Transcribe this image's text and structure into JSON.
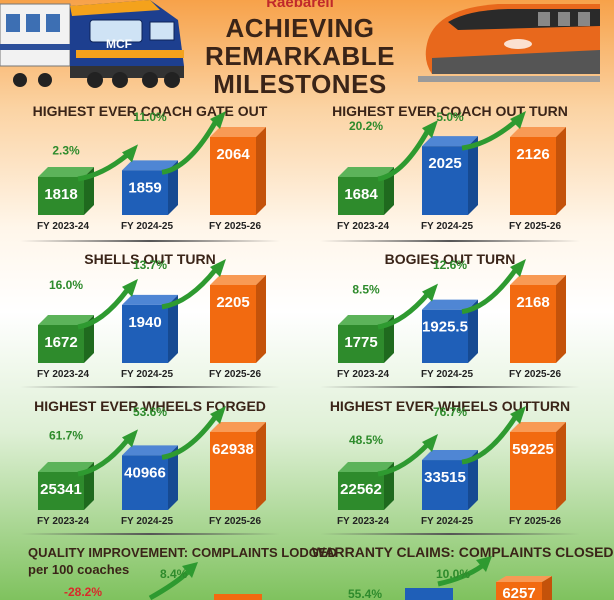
{
  "header": {
    "subtitle": "Raebareli",
    "title_lines": [
      "ACHIEVING",
      "REMARKABLE",
      "MILESTONES"
    ],
    "train_left_label": "MCF"
  },
  "colors": {
    "green": "#2e8b2c",
    "blue": "#1f5fb8",
    "orange": "#f26a10",
    "title": "#3a2418",
    "negative": "#d92a2a",
    "arrow": "#2e9a30"
  },
  "chart_data": [
    {
      "type": "bar",
      "title": "HIGHEST EVER COACH GATE OUT",
      "categories": [
        "FY 2023-24",
        "FY 2024-25",
        "FY 2025-26"
      ],
      "values": [
        1818,
        1859,
        2064
      ],
      "value_labels": [
        "1818",
        "1859",
        "2064"
      ],
      "growth_labels": [
        "2.3%",
        "11.0%"
      ]
    },
    {
      "type": "bar",
      "title": "HIGHEST EVER COACH OUT TURN",
      "categories": [
        "FY 2023-24",
        "FY 2024-25",
        "FY 2025-26"
      ],
      "values": [
        1684,
        2025,
        2126
      ],
      "value_labels": [
        "1684",
        "2025",
        "2126"
      ],
      "growth_labels": [
        "20.2%",
        "5.0%"
      ]
    },
    {
      "type": "bar",
      "title": "SHELLS OUT TURN",
      "categories": [
        "FY 2023-24",
        "FY 2024-25",
        "FY 2025-26"
      ],
      "values": [
        1672,
        1940,
        2205
      ],
      "value_labels": [
        "1672",
        "1940",
        "2205"
      ],
      "growth_labels": [
        "16.0%",
        "13.7%"
      ]
    },
    {
      "type": "bar",
      "title": "BOGIES OUT TURN",
      "categories": [
        "FY 2023-24",
        "FY 2024-25",
        "FY 2025-26"
      ],
      "values": [
        1775,
        1925.5,
        2168
      ],
      "value_labels": [
        "1775",
        "1925.5",
        "2168"
      ],
      "growth_labels": [
        "8.5%",
        "12.6%"
      ]
    },
    {
      "type": "bar",
      "title": "HIGHEST EVER WHEELS FORGED",
      "categories": [
        "FY 2023-24",
        "FY 2024-25",
        "FY 2025-26"
      ],
      "values": [
        25341,
        40966,
        62938
      ],
      "value_labels": [
        "25341",
        "40966",
        "62938"
      ],
      "growth_labels": [
        "61.7%",
        "53.6%"
      ]
    },
    {
      "type": "bar",
      "title": "HIGHEST EVER WHEELS OUTTURN",
      "categories": [
        "FY 2023-24",
        "FY 2024-25",
        "FY 2025-26"
      ],
      "values": [
        22562,
        33515,
        59225
      ],
      "value_labels": [
        "22562",
        "33515",
        "59225"
      ],
      "growth_labels": [
        "48.5%",
        "76.7%"
      ]
    },
    {
      "type": "bar",
      "title": "QUALITY IMPROVEMENT: COMPLAINTS LODGED per 100 coaches",
      "title_lines": [
        "QUALITY IMPROVEMENT: COMPLAINTS LODGED",
        "per 100 coaches"
      ],
      "categories": [],
      "values": [],
      "value_labels": [],
      "growth_labels": [
        "-28.2%",
        "8.4%"
      ]
    },
    {
      "type": "bar",
      "title": "WARRANTY CLAIMS: COMPLAINTS CLOSED",
      "categories": [],
      "values": [],
      "value_labels": [
        "",
        "",
        "6257"
      ],
      "growth_labels": [
        "55.4%",
        "10.0%"
      ]
    }
  ]
}
